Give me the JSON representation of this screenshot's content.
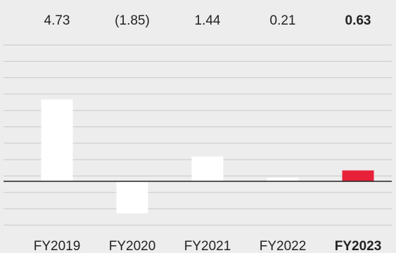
{
  "chart_data": {
    "type": "bar",
    "categories": [
      "FY2019",
      "FY2020",
      "FY2021",
      "FY2022",
      "FY2023"
    ],
    "values": [
      4.73,
      -1.85,
      1.44,
      0.21,
      0.63
    ],
    "value_labels": [
      "4.73",
      "(1.85)",
      "1.44",
      "0.21",
      "0.63"
    ],
    "highlight_index": 4,
    "ylim": [
      -3.0,
      8.4
    ],
    "grid": true,
    "title": "",
    "xlabel": "",
    "ylabel": ""
  },
  "colors": {
    "background": "#ededed",
    "bar": "#ffffff",
    "highlight_bar": "#e8213a",
    "gridline": "#c8c8c8",
    "baseline": "#222222",
    "text": "#222222"
  }
}
